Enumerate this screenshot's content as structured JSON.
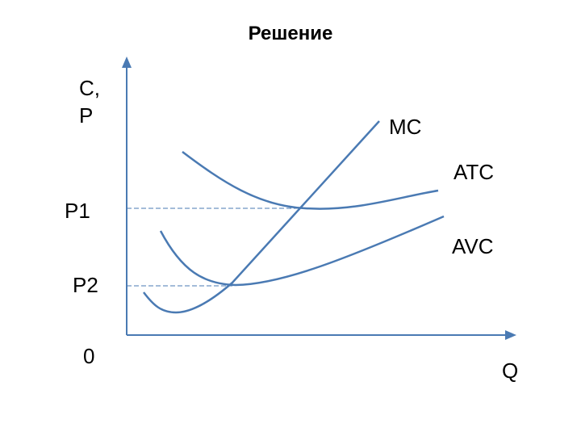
{
  "title": "Решение",
  "y_axis_label": [
    "C,",
    "P"
  ],
  "x_axis_label": "Q",
  "price_labels": {
    "p1": "P1",
    "p2": "P2",
    "origin": "0"
  },
  "curve_labels": {
    "mc": "MC",
    "atc": "ATC",
    "avc": "AVC"
  },
  "colors": {
    "curve": "#4a7ab3",
    "axis": "#4a7ab3",
    "guide": "#4a7ab3",
    "text": "#000000"
  }
}
